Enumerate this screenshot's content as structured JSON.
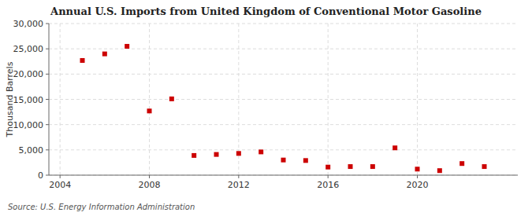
{
  "chart_data": {
    "type": "scatter",
    "title": "Annual U.S. Imports from United Kingdom of Conventional Motor Gasoline",
    "ylabel": "Thousand Barrels",
    "annotations": [
      "Source: U.S. Energy Information Administration"
    ],
    "x": [
      2005,
      2006,
      2007,
      2008,
      2009,
      2010,
      2011,
      2012,
      2013,
      2014,
      2015,
      2016,
      2017,
      2018,
      2019,
      2020,
      2021,
      2022,
      2023
    ],
    "values": [
      22700,
      24000,
      25500,
      12700,
      15100,
      3900,
      4100,
      4300,
      4600,
      3000,
      2900,
      1600,
      1700,
      1700,
      5400,
      1200,
      900,
      2300,
      1700
    ],
    "color": "#cc0000",
    "marker": "square",
    "xlim": [
      2003.5,
      2024.5
    ],
    "ylim": [
      0,
      30000
    ],
    "xticks": [
      2004,
      2008,
      2012,
      2016,
      2020
    ],
    "yticks": [
      0,
      {
        "value": 5000,
        "label": "5,000"
      },
      {
        "value": 10000,
        "label": "10,000"
      },
      {
        "value": 15000,
        "label": "15,000"
      },
      {
        "value": 20000,
        "label": "20,000"
      },
      {
        "value": 25000,
        "label": "25,000"
      },
      {
        "value": 30000,
        "label": "30,000"
      }
    ],
    "grid": true
  }
}
